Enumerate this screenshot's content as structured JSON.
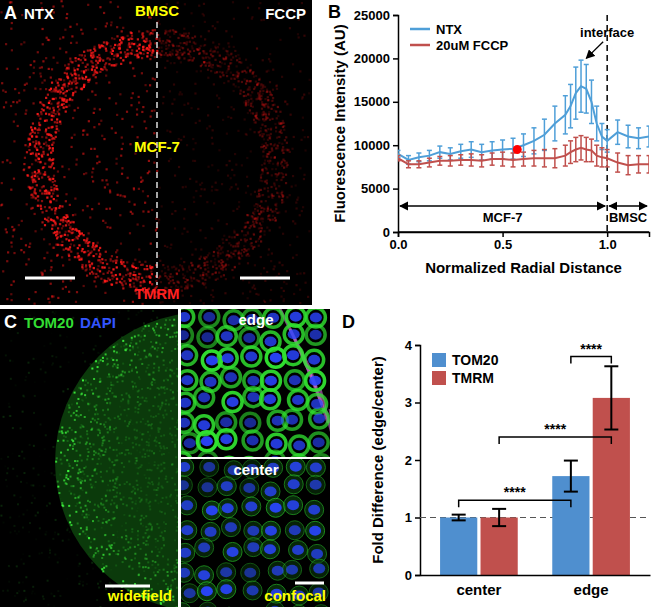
{
  "images": [
    {
      "title": "A",
      "labels": [
        {
          "text": "NTX",
          "color": "#ffffff"
        },
        {
          "text": "BMSC",
          "color": "#ffff00"
        },
        {
          "text": "FCCP",
          "color": "#ffffff"
        },
        {
          "text": "MCF-7",
          "color": "#ffff00"
        },
        {
          "text": "TMRM",
          "color": "#ff2020"
        }
      ]
    },
    {
      "title": "C",
      "labels": [
        {
          "text": "TOM20",
          "color": "#33dd33"
        },
        {
          "text": "DAPI",
          "color": "#3355ff"
        },
        {
          "text": "widefield",
          "color": "#ffff00"
        },
        {
          "text": "edge",
          "color": "#ffffff"
        },
        {
          "text": "center",
          "color": "#ffffff"
        },
        {
          "text": "confocal",
          "color": "#ffff00"
        }
      ]
    }
  ],
  "chart_data": [
    {
      "type": "line",
      "title": "B",
      "xlabel": "Normalized Radial Distance",
      "ylabel": "Fluorescence Intensity (AU)",
      "x": [
        0,
        0.05,
        0.1,
        0.15,
        0.2,
        0.25,
        0.3,
        0.35,
        0.4,
        0.45,
        0.5,
        0.55,
        0.6,
        0.65,
        0.7,
        0.75,
        0.8,
        0.825,
        0.85,
        0.875,
        0.9,
        0.925,
        0.95,
        0.975,
        1.0,
        1.05,
        1.1,
        1.15,
        1.2
      ],
      "series": [
        {
          "name": "NTX",
          "color": "#4f9fd8",
          "values": [
            9000,
            8300,
            8600,
            8800,
            9200,
            9000,
            9300,
            9500,
            9200,
            9400,
            9500,
            9600,
            10000,
            10500,
            11200,
            12500,
            13500,
            14500,
            16000,
            16800,
            16500,
            15000,
            12500,
            11000,
            10500,
            11500,
            11000,
            10800,
            11000
          ],
          "errors": [
            400,
            500,
            500,
            600,
            700,
            700,
            800,
            900,
            900,
            1000,
            1100,
            1200,
            1300,
            1500,
            1800,
            2000,
            2200,
            2500,
            3000,
            3000,
            2800,
            2500,
            2000,
            1500,
            1300,
            1400,
            1300,
            1200,
            1200
          ]
        },
        {
          "name": "20uM FCCP",
          "color": "#c0504d",
          "values": [
            8500,
            7800,
            7800,
            8000,
            8200,
            8200,
            8300,
            8300,
            8200,
            8400,
            8400,
            8300,
            8400,
            8500,
            8500,
            8500,
            8800,
            9200,
            9500,
            9700,
            9500,
            9400,
            8800,
            8600,
            8500,
            8000,
            7700,
            7800,
            7800
          ],
          "errors": [
            300,
            400,
            400,
            500,
            500,
            600,
            600,
            700,
            700,
            700,
            800,
            800,
            800,
            900,
            1000,
            1100,
            1200,
            1300,
            1400,
            1400,
            1400,
            1300,
            1200,
            1100,
            1000,
            1100,
            1100,
            1000,
            1000
          ]
        }
      ],
      "xlim": [
        0,
        1.2
      ],
      "ylim": [
        0,
        25000
      ],
      "xticks": [
        {
          "value": 0,
          "label": "0.0"
        },
        0.5,
        {
          "value": 1,
          "label": "1.0"
        }
      ],
      "yticks": [
        0,
        5000,
        10000,
        15000,
        20000,
        25000
      ],
      "legend": "top-left",
      "highlight": {
        "x": 0.57,
        "y": 9500,
        "color": "#ff0000"
      },
      "vlines": [
        1
      ],
      "annotations": [
        {
          "text": "interface",
          "x": 1.0,
          "y": 22500,
          "arrow_x": 0.9,
          "arrow_y": 20000
        }
      ],
      "regions": [
        {
          "label": "MCF-7",
          "from": 0,
          "to": 1.0
        },
        {
          "label": "BMSC",
          "from": 1.0,
          "to": 1.2
        }
      ]
    },
    {
      "type": "bar",
      "title": "D",
      "ylabel": "Fold Difference (edge/center)",
      "categories": [
        "center",
        "edge"
      ],
      "series": [
        {
          "name": "TOM20",
          "color": "#4f8fcf",
          "values": [
            1.0,
            1.72
          ],
          "errors": [
            0.05,
            0.27
          ]
        },
        {
          "name": "TMRM",
          "color": "#c0504d",
          "values": [
            1.0,
            3.08
          ],
          "errors": [
            0.15,
            0.55
          ]
        }
      ],
      "ylim": [
        0,
        4
      ],
      "yticks": [
        0,
        1,
        2,
        3,
        4
      ],
      "legend": "top-left",
      "hlines": [
        1
      ],
      "significance": [
        {
          "label": "****",
          "from": {
            "category": "center",
            "series": "TOM20"
          },
          "to": {
            "category": "edge",
            "series": "TOM20"
          },
          "y": 1.3
        },
        {
          "label": "****",
          "from": {
            "category": "center",
            "series": "TMRM"
          },
          "to": {
            "category": "edge",
            "series": "TMRM"
          },
          "y": 2.4
        },
        {
          "label": "****",
          "from": {
            "category": "edge",
            "series": "TOM20"
          },
          "to": {
            "category": "edge",
            "series": "TMRM"
          },
          "y": 3.8
        }
      ]
    }
  ]
}
